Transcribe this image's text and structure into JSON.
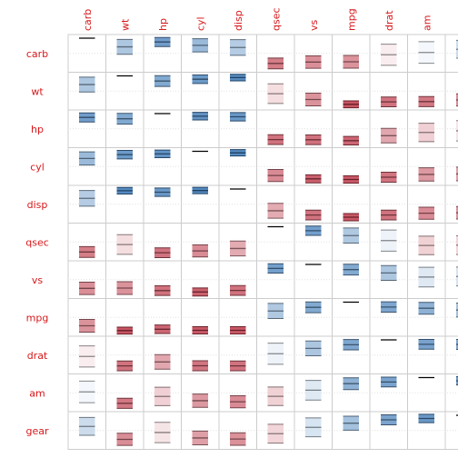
{
  "chart_data": {
    "type": "heatmap",
    "title": "",
    "variables": [
      "carb",
      "wt",
      "hp",
      "cyl",
      "disp",
      "qsec",
      "vs",
      "mpg",
      "drat",
      "am",
      "gear"
    ],
    "values": [
      [
        1.0,
        0.43,
        0.75,
        0.53,
        0.39,
        -0.66,
        -0.57,
        -0.55,
        -0.09,
        0.06,
        0.27
      ],
      [
        0.43,
        1.0,
        0.66,
        0.78,
        0.89,
        -0.17,
        -0.55,
        -0.87,
        -0.71,
        -0.69,
        -0.58
      ],
      [
        0.75,
        0.66,
        1.0,
        0.83,
        0.79,
        -0.71,
        -0.72,
        -0.78,
        -0.45,
        -0.24,
        -0.13
      ],
      [
        0.53,
        0.78,
        0.83,
        1.0,
        0.9,
        -0.59,
        -0.81,
        -0.85,
        -0.7,
        -0.52,
        -0.49
      ],
      [
        0.39,
        0.89,
        0.79,
        0.9,
        1.0,
        -0.43,
        -0.71,
        -0.85,
        -0.71,
        -0.59,
        -0.56
      ],
      [
        -0.66,
        -0.17,
        -0.71,
        -0.59,
        -0.43,
        1.0,
        0.74,
        0.42,
        0.09,
        -0.23,
        -0.21
      ],
      [
        -0.57,
        -0.55,
        -0.72,
        -0.81,
        -0.71,
        0.74,
        1.0,
        0.66,
        0.44,
        0.17,
        0.21
      ],
      [
        -0.55,
        -0.87,
        -0.78,
        -0.85,
        -0.85,
        0.42,
        0.66,
        1.0,
        0.68,
        0.6,
        0.48
      ],
      [
        -0.09,
        -0.71,
        -0.45,
        -0.7,
        -0.71,
        0.09,
        0.44,
        0.68,
        1.0,
        0.71,
        0.7
      ],
      [
        0.06,
        -0.69,
        -0.24,
        -0.52,
        -0.59,
        -0.23,
        0.17,
        0.6,
        0.71,
        1.0,
        0.79
      ],
      [
        0.27,
        -0.58,
        -0.13,
        -0.49,
        -0.56,
        -0.21,
        0.21,
        0.48,
        0.7,
        0.79,
        1.0
      ]
    ],
    "value_range": [
      -1,
      1
    ],
    "grid": true,
    "colors": {
      "positive": "#2166ac",
      "negative": "#b2182b",
      "label": "#d7191c",
      "grid": "#cccccc",
      "guide": "#e0e0e0"
    }
  }
}
